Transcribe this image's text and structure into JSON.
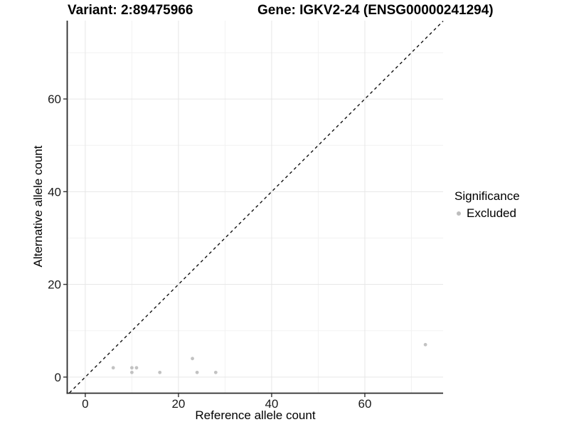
{
  "header": {
    "variant_title": "Variant: 2:89475966",
    "gene_title": "Gene: IGKV2-24 (ENSG00000241294)"
  },
  "legend": {
    "title": "Significance",
    "items": [
      {
        "label": "Excluded",
        "color": "#bdbdbd"
      }
    ]
  },
  "colors": {
    "point": "#c2c2c2",
    "grid_major": "#e6e6e6",
    "grid_minor": "#f2f2f2",
    "axis_line": "#2b2b2b",
    "tick_mark": "#333333",
    "tick_label": "#1a1a1a",
    "identity_line": "#111111",
    "background": "#ffffff"
  },
  "chart_data": {
    "type": "scatter",
    "title": "Variant: 2:89475966 / Gene: IGKV2-24 (ENSG00000241294)",
    "xlabel": "Reference allele count",
    "ylabel": "Alternative allele count",
    "xlim": [
      -3.8,
      76.8
    ],
    "ylim": [
      -3.4,
      76.9
    ],
    "x_ticks": [
      0,
      20,
      40,
      60
    ],
    "x_minor_ticks": [
      10,
      30,
      50,
      70
    ],
    "y_ticks": [
      0,
      20,
      40,
      60
    ],
    "y_minor_ticks": [
      10,
      30,
      50,
      70
    ],
    "grid": true,
    "legend_position": "right",
    "identity_line": {
      "equation": "y = x",
      "style": "dashed"
    },
    "series": [
      {
        "name": "Excluded",
        "color": "#c2c2c2",
        "points": [
          [
            6,
            2
          ],
          [
            10,
            1
          ],
          [
            10,
            2
          ],
          [
            11,
            2
          ],
          [
            16,
            1
          ],
          [
            23,
            4
          ],
          [
            24,
            1
          ],
          [
            28,
            1
          ],
          [
            73,
            7
          ]
        ]
      }
    ]
  }
}
